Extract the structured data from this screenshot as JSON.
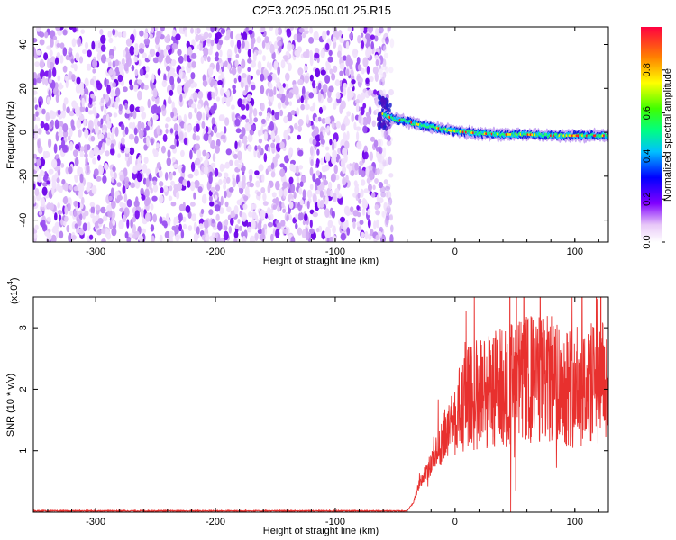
{
  "title": "C2E3.2025.050.01.25.R15",
  "chart_data": [
    {
      "type": "heatmap",
      "xlabel": "Height of straight line (km)",
      "ylabel": "Frequency (Hz)",
      "xlim": [
        -352,
        128
      ],
      "ylim": [
        -50,
        48
      ],
      "xticks": [
        -300,
        -200,
        -100,
        0,
        100
      ],
      "yticks": [
        -40,
        -20,
        0,
        20,
        40
      ],
      "noise_region_x": [
        -352,
        -57
      ],
      "signal_track": {
        "x": [
          -62,
          -55,
          -50,
          -40,
          -30,
          -20,
          -10,
          0,
          20,
          40,
          60,
          80,
          100,
          128
        ],
        "frequency": [
          9,
          7,
          6,
          5,
          3.5,
          2.5,
          1.5,
          0.5,
          -0.5,
          -1,
          -1,
          -1.5,
          -1.5,
          -1.5
        ]
      },
      "colorbar": {
        "label": "Normalized spectral amplitude",
        "range": [
          0.0,
          1.0
        ],
        "ticks": [
          0.0,
          0.2,
          0.4,
          0.6,
          0.8
        ]
      }
    },
    {
      "type": "line",
      "xlabel": "Height of straight line (km)",
      "ylabel": "SNR (10 * v/v)",
      "multiplier": "(x10",
      "multiplier_exp": "4",
      "multiplier_close": ")",
      "xlim": [
        -352,
        128
      ],
      "ylim": [
        0,
        3.5
      ],
      "xticks": [
        -300,
        -200,
        -100,
        0,
        100
      ],
      "yticks": [
        1,
        2,
        3
      ],
      "series": [
        {
          "color": "#e8302e",
          "x": [
            -352,
            -40,
            -35,
            -30,
            -20,
            -10,
            0,
            10,
            20,
            40,
            60,
            80,
            100,
            128
          ],
          "y": [
            0.02,
            0.02,
            0.15,
            0.45,
            0.8,
            1.2,
            1.55,
            1.8,
            1.95,
            2.05,
            2.15,
            2.15,
            2.05,
            2.1
          ]
        }
      ]
    }
  ]
}
